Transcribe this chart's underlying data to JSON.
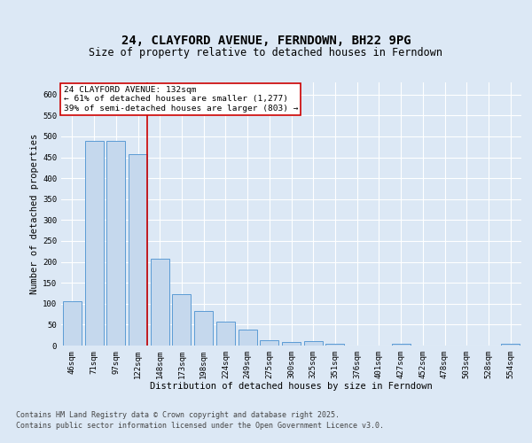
{
  "title": "24, CLAYFORD AVENUE, FERNDOWN, BH22 9PG",
  "subtitle": "Size of property relative to detached houses in Ferndown",
  "xlabel": "Distribution of detached houses by size in Ferndown",
  "ylabel": "Number of detached properties",
  "categories": [
    "46sqm",
    "71sqm",
    "97sqm",
    "122sqm",
    "148sqm",
    "173sqm",
    "198sqm",
    "224sqm",
    "249sqm",
    "275sqm",
    "300sqm",
    "325sqm",
    "351sqm",
    "376sqm",
    "401sqm",
    "427sqm",
    "452sqm",
    "478sqm",
    "503sqm",
    "528sqm",
    "554sqm"
  ],
  "values": [
    105,
    490,
    490,
    457,
    207,
    122,
    82,
    57,
    38,
    13,
    8,
    11,
    4,
    1,
    0,
    5,
    0,
    0,
    0,
    0,
    5
  ],
  "bar_color": "#c5d8ed",
  "bar_edge_color": "#5b9bd5",
  "vline_x_index": 3,
  "vline_color": "#cc0000",
  "annotation_text": "24 CLAYFORD AVENUE: 132sqm\n← 61% of detached houses are smaller (1,277)\n39% of semi-detached houses are larger (803) →",
  "annotation_box_color": "#ffffff",
  "annotation_box_edge_color": "#cc0000",
  "ylim": [
    0,
    630
  ],
  "yticks": [
    0,
    50,
    100,
    150,
    200,
    250,
    300,
    350,
    400,
    450,
    500,
    550,
    600
  ],
  "footer_line1": "Contains HM Land Registry data © Crown copyright and database right 2025.",
  "footer_line2": "Contains public sector information licensed under the Open Government Licence v3.0.",
  "background_color": "#dce8f5",
  "plot_bg_color": "#dce8f5",
  "grid_color": "#ffffff",
  "title_fontsize": 10,
  "subtitle_fontsize": 8.5,
  "axis_label_fontsize": 7.5,
  "tick_fontsize": 6.5,
  "annotation_fontsize": 6.8,
  "footer_fontsize": 6.0
}
